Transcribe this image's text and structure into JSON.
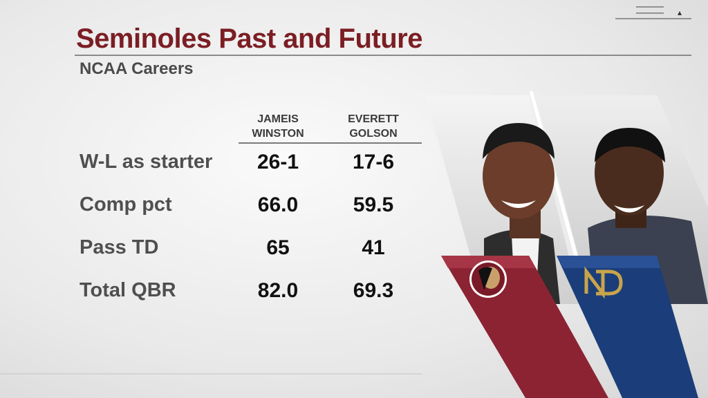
{
  "header": {
    "title": "Seminoles Past and Future",
    "subtitle": "NCAA Careers"
  },
  "table": {
    "columns": [
      [
        "JAMEIS",
        "WINSTON"
      ],
      [
        "EVERETT",
        "GOLSON"
      ]
    ],
    "rows": [
      {
        "label": "W-L as starter",
        "values": [
          "26-1",
          "17-6"
        ]
      },
      {
        "label": "Comp pct",
        "values": [
          "66.0",
          "59.5"
        ]
      },
      {
        "label": "Pass TD",
        "values": [
          "65",
          "41"
        ]
      },
      {
        "label": "Total QBR",
        "values": [
          "82.0",
          "69.3"
        ]
      }
    ]
  }
}
